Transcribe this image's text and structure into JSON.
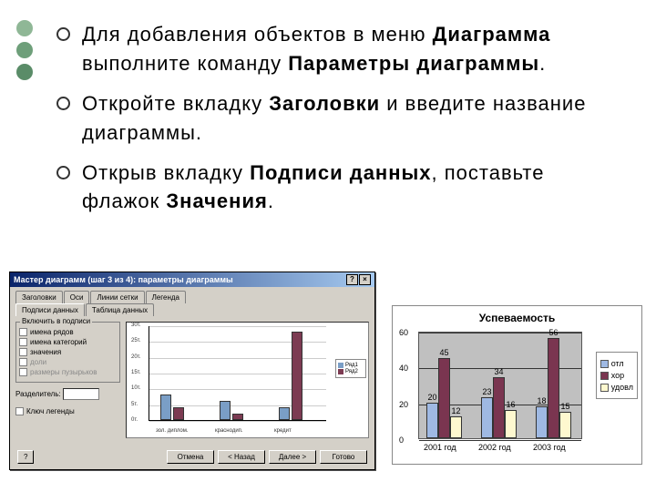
{
  "decorative_dots": [
    "#8fb796",
    "#6e9f7a",
    "#5a8c68"
  ],
  "bullets": [
    {
      "parts": [
        {
          "t": "Для добавления объектов в меню "
        },
        {
          "t": "Диаграмма",
          "b": true
        },
        {
          "t": " выполните команду "
        },
        {
          "t": "Параметры диаграммы",
          "b": true
        },
        {
          "t": "."
        }
      ]
    },
    {
      "parts": [
        {
          "t": "Откройте вкладку "
        },
        {
          "t": "Заголовки",
          "b": true
        },
        {
          "t": " и введите название диаграммы."
        }
      ]
    },
    {
      "parts": [
        {
          "t": "Открыв вкладку "
        },
        {
          "t": "Подписи данных",
          "b": true
        },
        {
          "t": ", поставьте флажок "
        },
        {
          "t": "Значения",
          "b": true
        },
        {
          "t": "."
        }
      ]
    }
  ],
  "dialog": {
    "title": "Мастер диаграмм (шаг 3 из 4): параметры диаграммы",
    "win_buttons": [
      "?",
      "×"
    ],
    "tabs_row1": [
      "Заголовки",
      "Оси",
      "Линии сетки",
      "Легенда"
    ],
    "tabs_row2": [
      "Подписи данных",
      "Таблица данных"
    ],
    "active_tab": "Подписи данных",
    "group1_title": "Включить в подписи",
    "checks": [
      {
        "label": "имена рядов",
        "disabled": false
      },
      {
        "label": "имена категорий",
        "disabled": false
      },
      {
        "label": "значения",
        "disabled": false
      },
      {
        "label": "доли",
        "disabled": true
      },
      {
        "label": "размеры пузырьков",
        "disabled": true
      }
    ],
    "sep_label": "Разделитель:",
    "keylegend_label": "Ключ легенды",
    "buttons": {
      "help": "?",
      "cancel": "Отмена",
      "back": "< Назад",
      "next": "Далее >",
      "finish": "Готово"
    },
    "preview": {
      "yticks": [
        "0т.",
        "5т.",
        "10т.",
        "15т.",
        "20т.",
        "25т.",
        "30т."
      ],
      "xlabels": [
        "зол. диплом.",
        "краснодип.",
        "кредит"
      ],
      "series": [
        {
          "color": "#7a9ec6",
          "values": [
            8,
            6,
            4
          ]
        },
        {
          "color": "#7c3b52",
          "values": [
            4,
            2,
            28
          ]
        }
      ],
      "legend": [
        {
          "label": "Ряд1",
          "color": "#7a9ec6"
        },
        {
          "label": "Ряд2",
          "color": "#7c3b52"
        }
      ],
      "ymax": 30
    }
  },
  "chart2": {
    "type": "bar",
    "title": "Успеваемость",
    "categories": [
      "2001 год",
      "2002 год",
      "2003 год"
    ],
    "series": [
      {
        "name": "отл",
        "color": "#9fb9e3",
        "values": [
          20,
          23,
          18
        ]
      },
      {
        "name": "хор",
        "color": "#7a3550",
        "values": [
          45,
          34,
          56
        ]
      },
      {
        "name": "удовл",
        "color": "#fef8cf",
        "values": [
          12,
          16,
          15
        ]
      }
    ],
    "ylim": [
      0,
      60
    ],
    "ytick_step": 20,
    "plot_bg": "#c0c0c0",
    "grid_color": "#333333"
  }
}
